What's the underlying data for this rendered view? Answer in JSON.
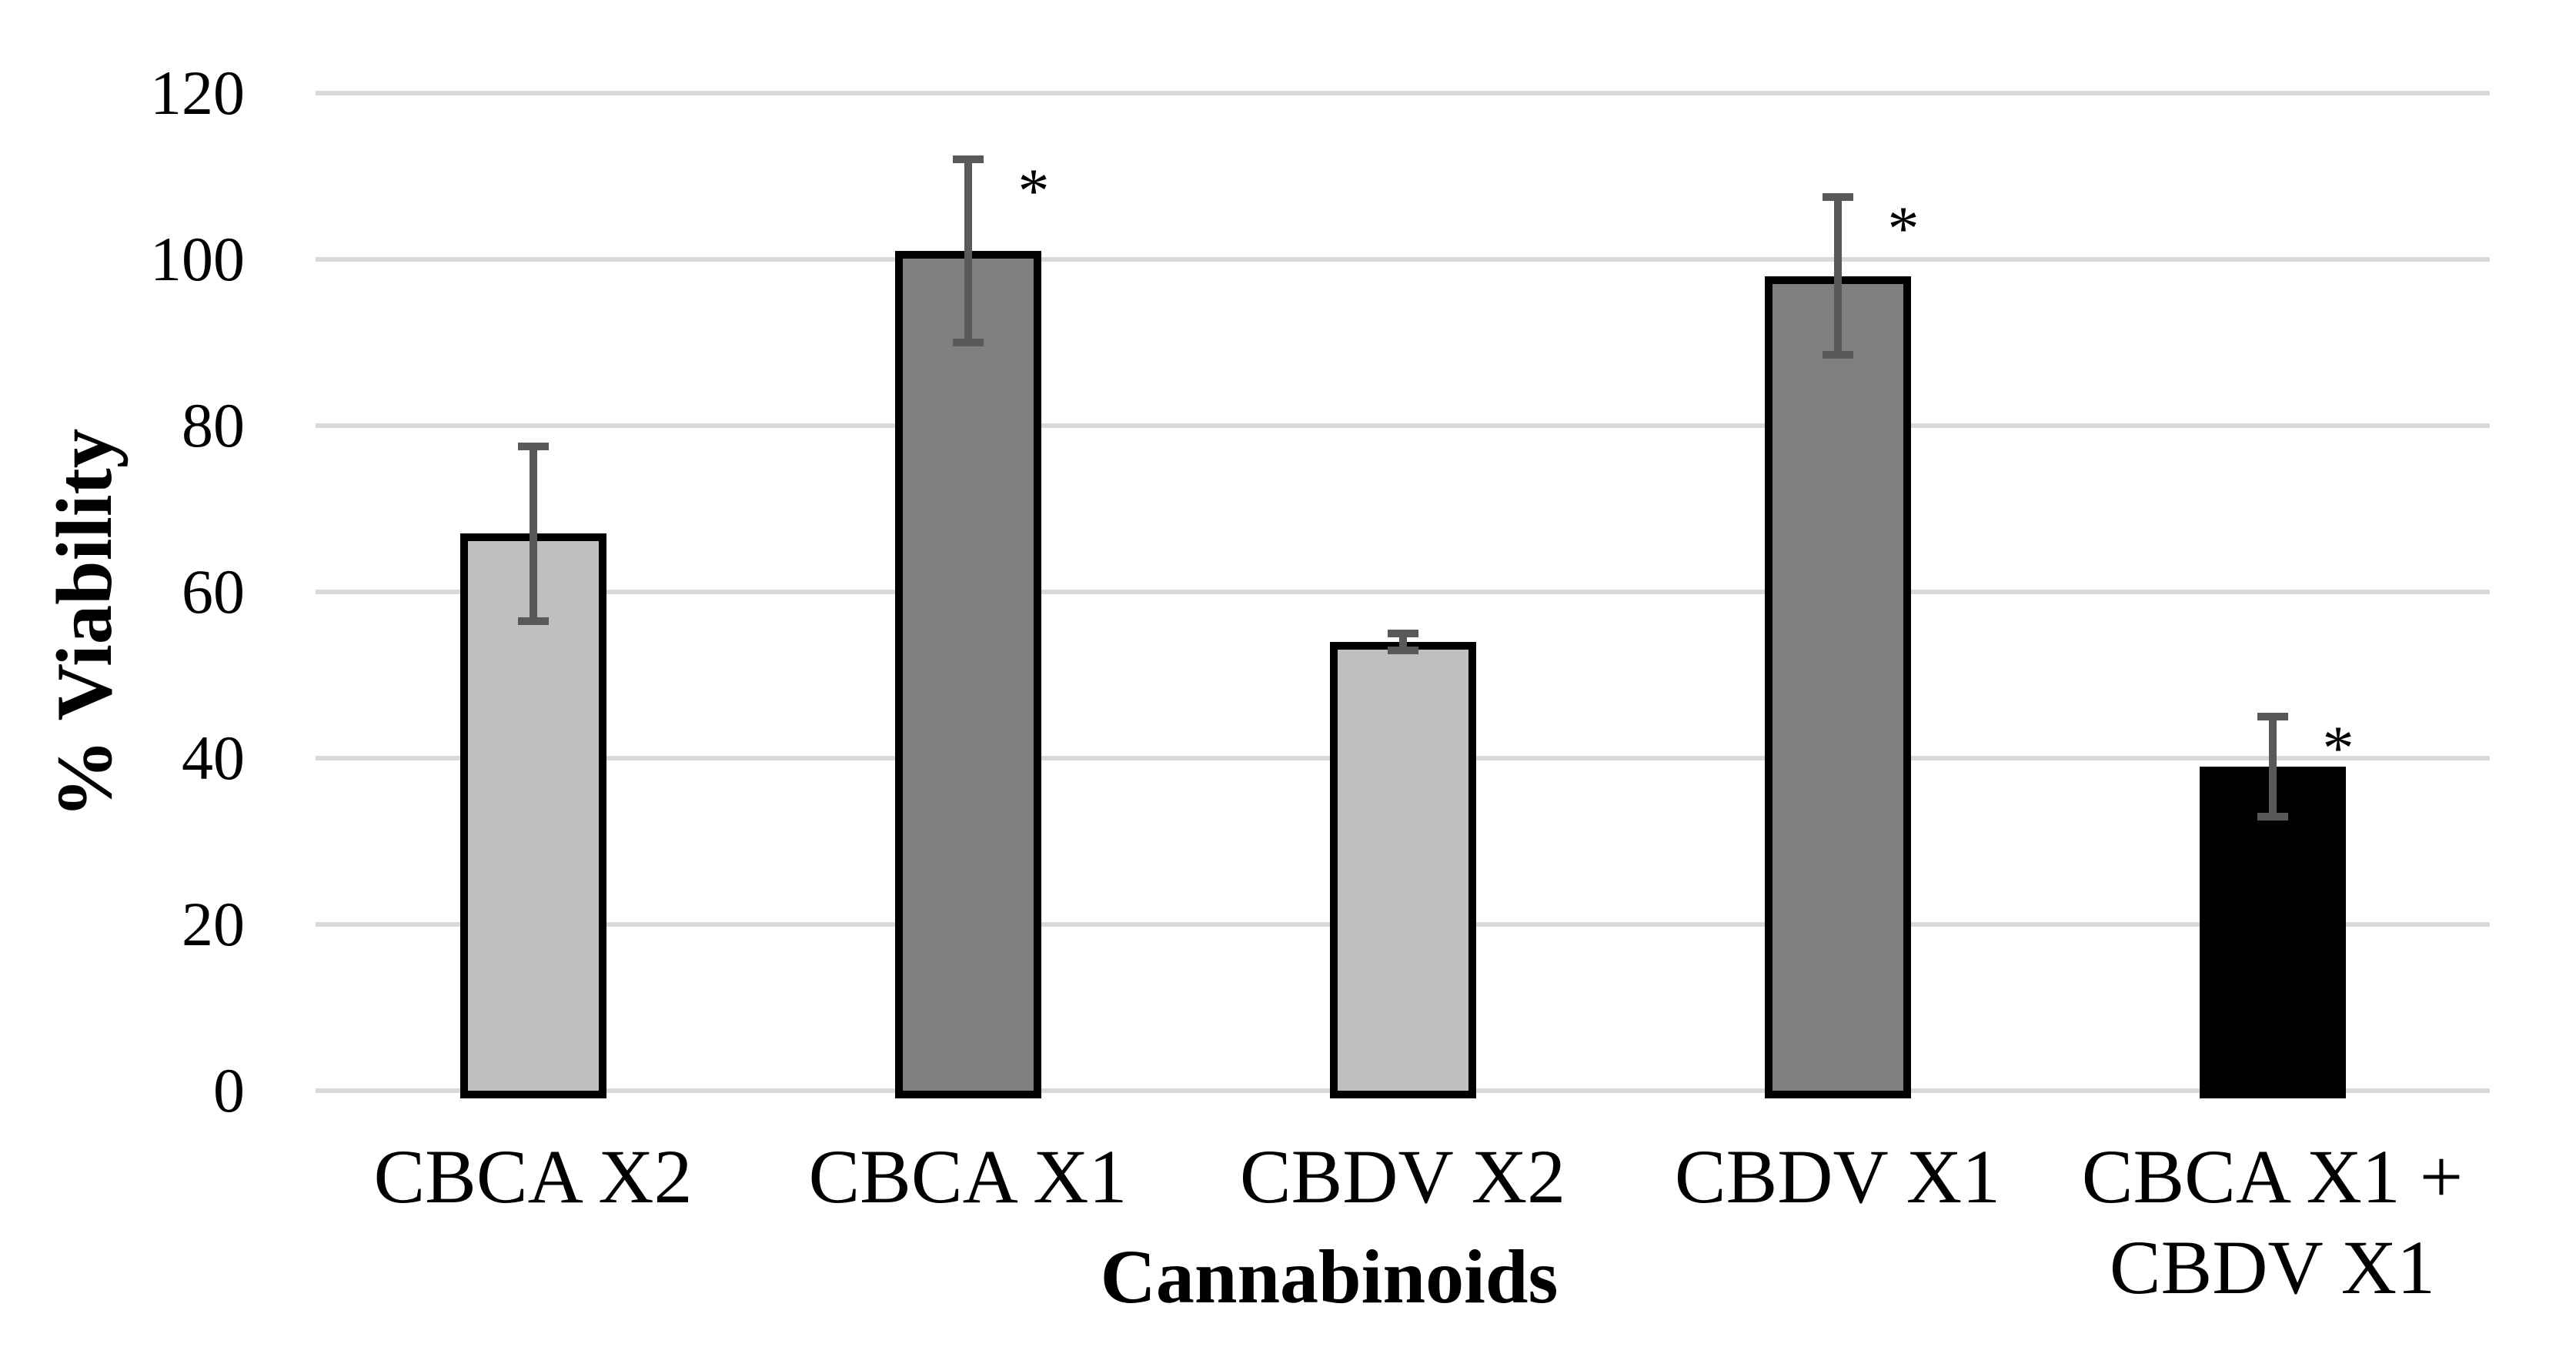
{
  "chart_data": {
    "type": "bar",
    "title": "",
    "xlabel": "Cannabinoids",
    "ylabel": "% Viability",
    "categories": [
      "CBCA X2",
      "CBCA X1",
      "CBDV X2",
      "CBDV X1",
      "CBCA X1 +\nCBDV X1"
    ],
    "values": [
      67,
      101,
      54,
      98,
      39
    ],
    "errors": [
      10.5,
      11,
      1,
      9.5,
      6
    ],
    "significant": [
      false,
      true,
      false,
      true,
      true
    ],
    "sig_symbol": "*",
    "yticks": [
      0,
      20,
      40,
      60,
      80,
      100,
      120
    ],
    "ylim": [
      0,
      120
    ],
    "grid": "horizontal",
    "legend": "none",
    "bar_colors": [
      "#BFBFBF",
      "#7F7F7F",
      "#BFBFBF",
      "#7F7F7F",
      "#000000"
    ],
    "bar_border_color": "#000000",
    "error_bar_color": "#595959",
    "gridline_color": "#D9D9D9",
    "background_color": "#FFFFFF",
    "text_color": "#000000"
  }
}
